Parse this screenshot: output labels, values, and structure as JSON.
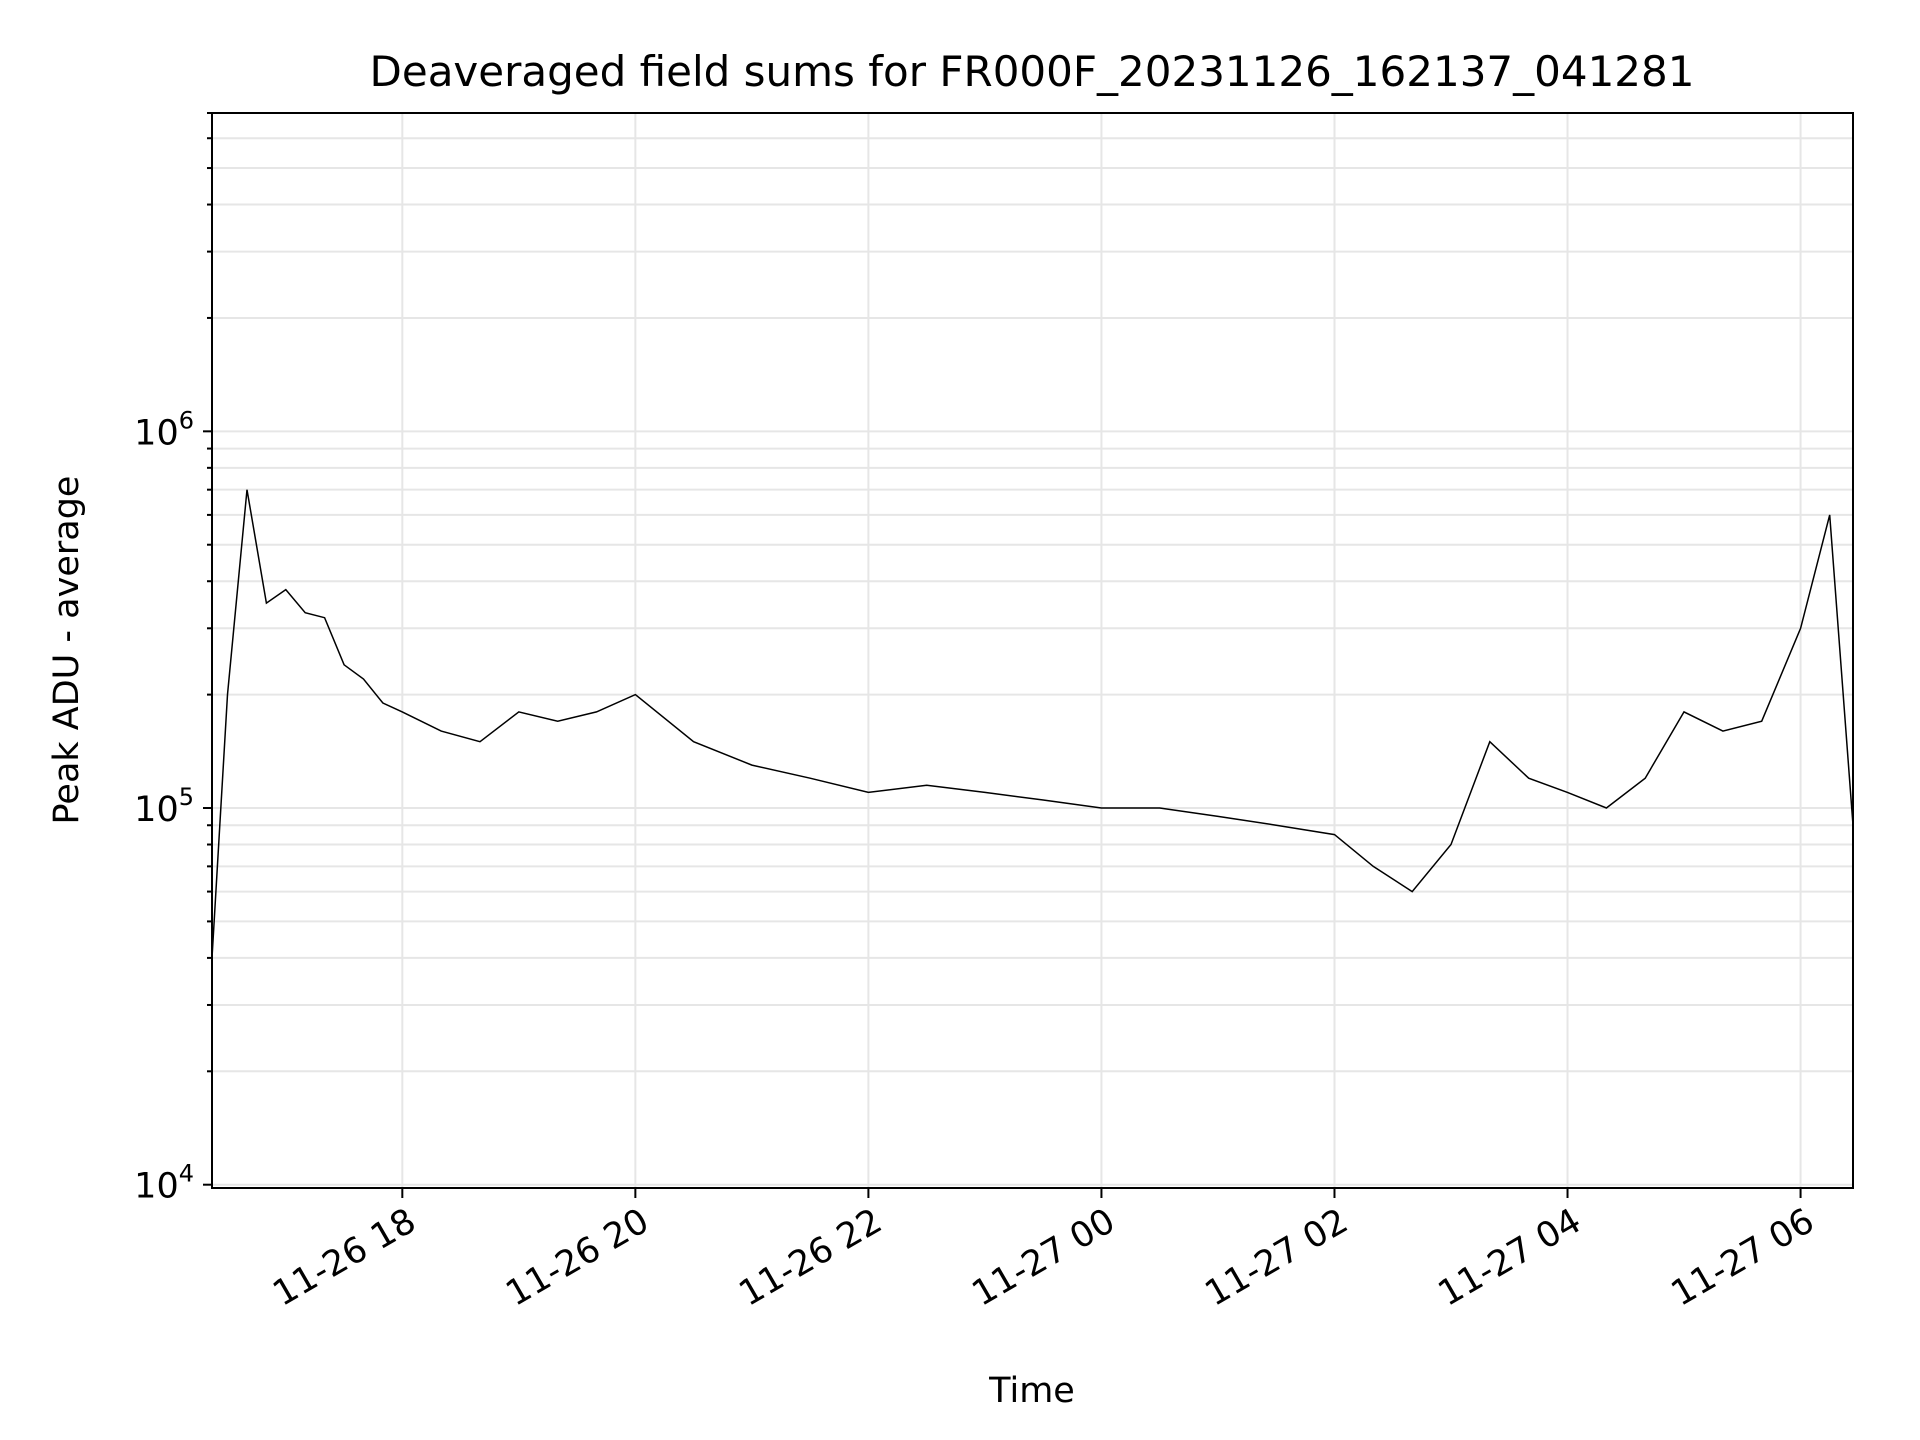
{
  "chart_data": {
    "type": "line",
    "title": "Deaveraged field sums for FR000F_20231126_162137_041281",
    "xlabel": "Time",
    "ylabel": "Peak ADU - average",
    "yscale": "log",
    "ylim": [
      9800,
      7000000
    ],
    "xlim": [
      "2023-11-26 16:22",
      "2023-11-27 06:27"
    ],
    "x_ticks": [
      {
        "value": "2023-11-26 18:00",
        "label": "11-26 18"
      },
      {
        "value": "2023-11-26 20:00",
        "label": "11-26 20"
      },
      {
        "value": "2023-11-26 22:00",
        "label": "11-26 22"
      },
      {
        "value": "2023-11-27 00:00",
        "label": "11-27 00"
      },
      {
        "value": "2023-11-27 02:00",
        "label": "11-27 02"
      },
      {
        "value": "2023-11-27 04:00",
        "label": "11-27 04"
      },
      {
        "value": "2023-11-27 06:00",
        "label": "11-27 06"
      }
    ],
    "y_ticks": [
      {
        "value": 10000,
        "base": "10",
        "exp": "4"
      },
      {
        "value": 100000,
        "base": "10",
        "exp": "5"
      },
      {
        "value": 1000000,
        "base": "10",
        "exp": "6"
      }
    ],
    "grid": true,
    "line_color": "#000000",
    "series": [
      {
        "x": [
          "2023-11-26 16:22",
          "2023-11-26 16:30",
          "2023-11-26 16:40",
          "2023-11-26 16:50",
          "2023-11-26 17:00",
          "2023-11-26 17:10",
          "2023-11-26 17:20",
          "2023-11-26 17:30",
          "2023-11-26 17:40",
          "2023-11-26 17:50",
          "2023-11-26 18:00",
          "2023-11-26 18:20",
          "2023-11-26 18:40",
          "2023-11-26 19:00",
          "2023-11-26 19:20",
          "2023-11-26 19:40",
          "2023-11-26 20:00",
          "2023-11-26 20:30",
          "2023-11-26 21:00",
          "2023-11-26 21:30",
          "2023-11-26 22:00",
          "2023-11-26 22:30",
          "2023-11-26 23:00",
          "2023-11-26 23:30",
          "2023-11-27 00:00",
          "2023-11-27 00:30",
          "2023-11-27 01:00",
          "2023-11-27 01:30",
          "2023-11-27 02:00",
          "2023-11-27 02:20",
          "2023-11-27 02:40",
          "2023-11-27 03:00",
          "2023-11-27 03:20",
          "2023-11-27 03:40",
          "2023-11-27 04:00",
          "2023-11-27 04:20",
          "2023-11-27 04:40",
          "2023-11-27 05:00",
          "2023-11-27 05:20",
          "2023-11-27 05:40",
          "2023-11-27 06:00",
          "2023-11-27 06:15",
          "2023-11-27 06:27"
        ],
        "values": [
          40000,
          200000,
          700000,
          350000,
          380000,
          330000,
          320000,
          240000,
          220000,
          190000,
          180000,
          160000,
          150000,
          180000,
          170000,
          180000,
          200000,
          150000,
          130000,
          120000,
          110000,
          115000,
          110000,
          105000,
          100000,
          100000,
          95000,
          90000,
          85000,
          70000,
          60000,
          80000,
          150000,
          120000,
          110000,
          100000,
          120000,
          180000,
          160000,
          170000,
          300000,
          600000,
          90000
        ]
      }
    ]
  }
}
